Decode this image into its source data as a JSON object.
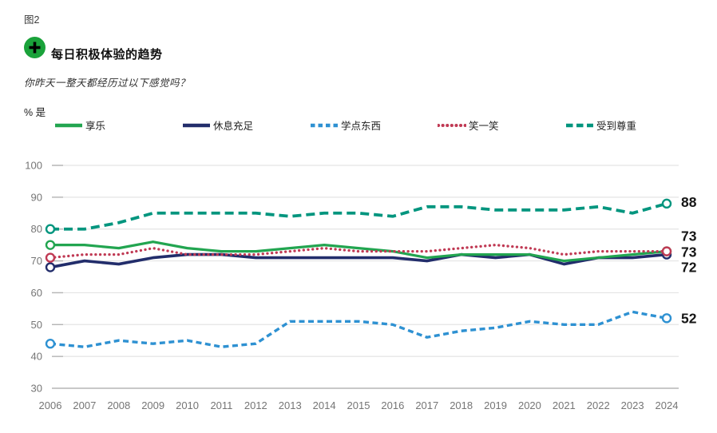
{
  "figure_label": "图2",
  "header": {
    "title": "每日积极体验的趋势",
    "subtitle": "你昨天一整天都经历过以下感觉吗？",
    "unit_label": "% 是",
    "icon": {
      "name": "plus-circle-icon",
      "circle_color": "#1aa23a",
      "plus_color": "#000000"
    }
  },
  "colors": {
    "gridline": "#e4e4e4",
    "gridline_tick": "#b4b4b4",
    "baseline": "#a8a8a8",
    "axis_text": "#757575",
    "end_label_text": "#161616"
  },
  "chart_data": {
    "type": "line",
    "x": [
      2006,
      2007,
      2008,
      2009,
      2010,
      2011,
      2012,
      2013,
      2014,
      2015,
      2016,
      2017,
      2018,
      2019,
      2020,
      2021,
      2022,
      2023,
      2024
    ],
    "ylim": [
      30,
      100
    ],
    "yticks": [
      100,
      90,
      80,
      70,
      60,
      50,
      40,
      30
    ],
    "grid": "horizontal",
    "legend_position": "top",
    "draw_order": [
      2,
      4,
      1,
      0,
      3
    ],
    "series": [
      {
        "name": "享乐",
        "slug": "enjoyment",
        "color": "#22a550",
        "style": "solid",
        "stroke_width": 3.2,
        "values": [
          75,
          75,
          74,
          76,
          74,
          73,
          73,
          74,
          75,
          74,
          73,
          71,
          72,
          72,
          72,
          70,
          71,
          72,
          73
        ],
        "end_label": {
          "text": "73",
          "dy": -19
        }
      },
      {
        "name": "休息充足",
        "slug": "well-rested",
        "color": "#222d6b",
        "style": "solid",
        "stroke_width": 3.6,
        "values": [
          68,
          70,
          69,
          71,
          72,
          72,
          71,
          71,
          71,
          71,
          71,
          70,
          72,
          71,
          72,
          69,
          71,
          71,
          72
        ],
        "end_label": {
          "text": "72",
          "dy": 16
        }
      },
      {
        "name": "学点东西",
        "slug": "learned-something",
        "color": "#2e91d2",
        "style": "dashed",
        "stroke_width": 3.4,
        "values": [
          44,
          43,
          45,
          44,
          45,
          43,
          44,
          51,
          51,
          51,
          50,
          46,
          48,
          49,
          51,
          50,
          50,
          54,
          52
        ],
        "end_label": {
          "text": "52",
          "dy": 0
        }
      },
      {
        "name": "笑一笑",
        "slug": "smile-laugh",
        "color": "#c03a54",
        "style": "dotted",
        "stroke_width": 3.3,
        "values": [
          71,
          72,
          72,
          74,
          72,
          72,
          72,
          73,
          74,
          73,
          73,
          73,
          74,
          75,
          74,
          72,
          73,
          73,
          73
        ],
        "end_label": {
          "text": "73",
          "dy": 1
        }
      },
      {
        "name": "受到尊重",
        "slug": "treated-with-respect",
        "color": "#00957e",
        "style": "long-dash",
        "stroke_width": 3.8,
        "values": [
          80,
          80,
          82,
          85,
          85,
          85,
          85,
          84,
          85,
          85,
          84,
          87,
          87,
          86,
          86,
          86,
          87,
          85,
          88
        ],
        "end_label": {
          "text": "88",
          "dy": -2
        }
      }
    ]
  }
}
